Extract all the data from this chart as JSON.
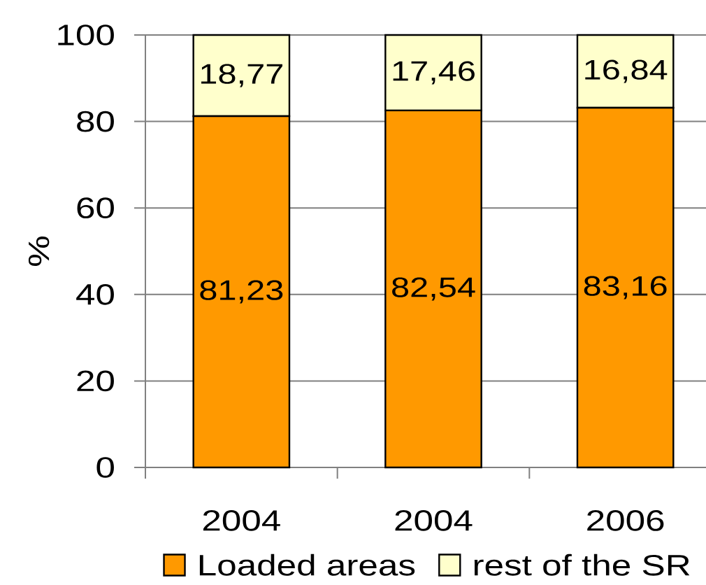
{
  "chart_data": {
    "type": "bar",
    "stacked": true,
    "ylabel": "%",
    "categories": [
      "2004",
      "2004",
      "2006"
    ],
    "series": [
      {
        "name": "Loaded areas",
        "color": "#ff9900",
        "values": [
          81.23,
          82.54,
          83.16
        ],
        "value_labels": [
          "81,23",
          "82,54",
          "83,16"
        ]
      },
      {
        "name": "rest of the SR",
        "color": "#ffffcc",
        "values": [
          18.77,
          17.46,
          16.84
        ],
        "value_labels": [
          "18,77",
          "17,46",
          "16,84"
        ]
      }
    ],
    "ylim": [
      0,
      100
    ],
    "yticks": [
      0,
      20,
      40,
      60,
      80,
      100
    ],
    "grid": "y",
    "legend": "bottom"
  }
}
